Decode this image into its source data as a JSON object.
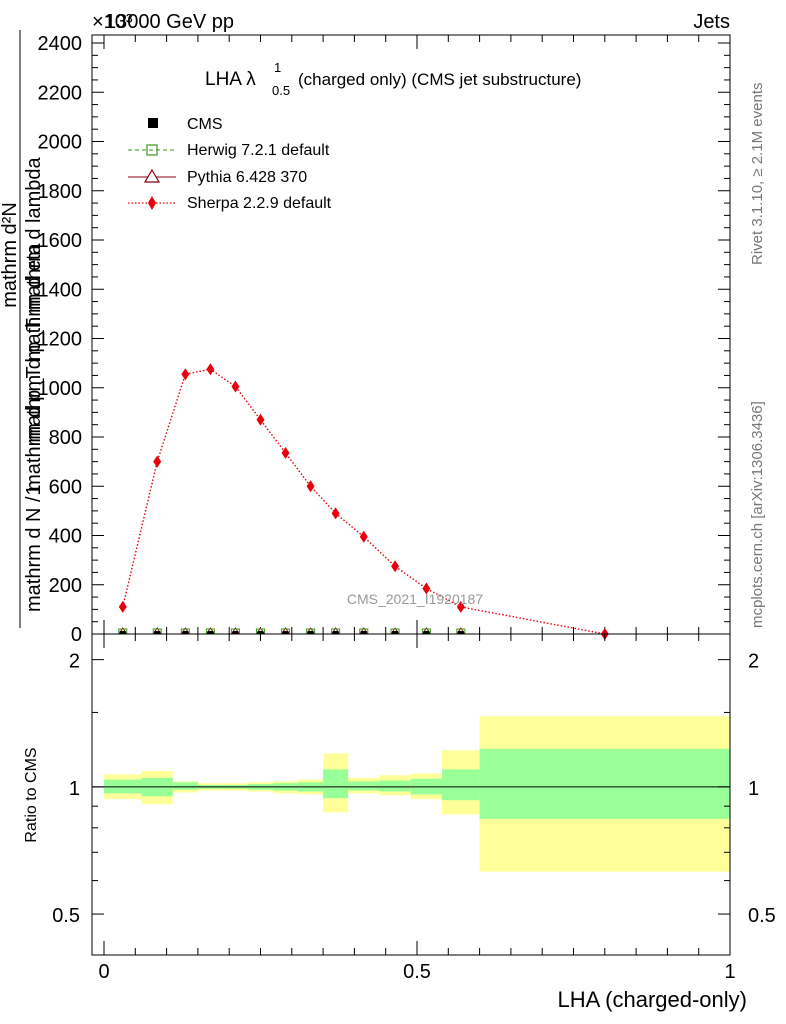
{
  "header": {
    "left": "13000 GeV pp",
    "right": "Jets"
  },
  "title": {
    "main": "LHA λ",
    "sup": "1",
    "sub": "0.5",
    "suffix": " (charged only) (CMS jet substructure)"
  },
  "side_labels": {
    "rivet": "Rivet 3.1.10, ≥ 2.1M events",
    "mcplots": "mcplots.cern.ch [arXiv:1306.3436]"
  },
  "watermark": "CMS_2021_I1920187",
  "exponent_label": "×10³",
  "colors": {
    "cms": "#000000",
    "herwig": "#3a9a1a",
    "pythia": "#8b0012",
    "sherpa": "#e8000b",
    "band_inner": "#99ff99",
    "band_outer": "#ffff99"
  },
  "chart_data": [
    {
      "type": "line",
      "panel": "main",
      "title": "LHA λ^1_0.5 (charged only) (CMS jet substructure)",
      "xlabel": "LHA (charged-only)",
      "ylabel_top": "mathrm d²N",
      "ylabel_bottom": "mathrm d p_T mathrm d lambda",
      "ylabel_left_top": "1",
      "ylabel_left_bottom": "mathrm d N / mathrm d p_T mathrm d eta",
      "xlim": [
        0,
        1
      ],
      "ylim": [
        0,
        2400
      ],
      "y_scale_note": "×10³",
      "yticks": [
        0,
        200,
        400,
        600,
        800,
        1000,
        1200,
        1400,
        1600,
        1800,
        2000,
        2200,
        2400
      ],
      "legend_position": "top-left",
      "series": [
        {
          "name": "CMS",
          "marker": "filled-square",
          "line": "none",
          "x": [
            0.03,
            0.085,
            0.13,
            0.17,
            0.21,
            0.25,
            0.29,
            0.33,
            0.37,
            0.415,
            0.465,
            0.515,
            0.57
          ],
          "values": [
            0,
            0,
            0,
            0,
            0,
            0,
            0,
            0,
            0,
            0,
            0,
            0,
            0
          ]
        },
        {
          "name": "Herwig 7.2.1 default",
          "marker": "open-square",
          "line": "dashed",
          "x": [
            0.03,
            0.085,
            0.13,
            0.17,
            0.21,
            0.25,
            0.29,
            0.33,
            0.37,
            0.415,
            0.465,
            0.515,
            0.57
          ],
          "values": [
            0,
            0,
            0,
            0,
            0,
            0,
            0,
            0,
            0,
            0,
            0,
            0,
            0
          ]
        },
        {
          "name": "Pythia 6.428 370",
          "marker": "open-triangle",
          "line": "solid",
          "x": [
            0.03,
            0.085,
            0.13,
            0.17,
            0.21,
            0.25,
            0.29,
            0.33,
            0.37,
            0.415,
            0.465,
            0.515,
            0.57
          ],
          "values": [
            0,
            0,
            0,
            0,
            0,
            0,
            0,
            0,
            0,
            0,
            0,
            0,
            0
          ]
        },
        {
          "name": "Sherpa 2.2.9 default",
          "marker": "filled-diamond",
          "line": "dotted",
          "x": [
            0.03,
            0.085,
            0.13,
            0.17,
            0.21,
            0.25,
            0.29,
            0.33,
            0.37,
            0.415,
            0.465,
            0.515,
            0.57,
            0.8
          ],
          "values": [
            110,
            700,
            1055,
            1075,
            1005,
            870,
            735,
            600,
            490,
            395,
            275,
            185,
            110,
            0
          ]
        }
      ]
    },
    {
      "type": "area",
      "panel": "ratio",
      "ylabel": "Ratio to CMS",
      "xlabel": "LHA (charged-only)",
      "xlim": [
        0,
        1
      ],
      "ylim": [
        0.4,
        2.3
      ],
      "yscale": "log",
      "yticks": [
        0.5,
        1,
        2
      ],
      "xticks": [
        0,
        0.5,
        1
      ],
      "reference_line": 1,
      "bins": [
        {
          "x": [
            0.0,
            0.06
          ],
          "inner": [
            0.965,
            1.04
          ],
          "outer": [
            0.935,
            1.07
          ]
        },
        {
          "x": [
            0.06,
            0.11
          ],
          "inner": [
            0.95,
            1.05
          ],
          "outer": [
            0.91,
            1.09
          ]
        },
        {
          "x": [
            0.11,
            0.15
          ],
          "inner": [
            0.985,
            1.025
          ],
          "outer": [
            0.97,
            1.03
          ]
        },
        {
          "x": [
            0.15,
            0.19
          ],
          "inner": [
            0.99,
            1.01
          ],
          "outer": [
            0.98,
            1.02
          ]
        },
        {
          "x": [
            0.19,
            0.23
          ],
          "inner": [
            0.99,
            1.01
          ],
          "outer": [
            0.98,
            1.02
          ]
        },
        {
          "x": [
            0.23,
            0.27
          ],
          "inner": [
            0.985,
            1.015
          ],
          "outer": [
            0.975,
            1.025
          ]
        },
        {
          "x": [
            0.27,
            0.31
          ],
          "inner": [
            0.98,
            1.02
          ],
          "outer": [
            0.965,
            1.03
          ]
        },
        {
          "x": [
            0.31,
            0.35
          ],
          "inner": [
            0.975,
            1.025
          ],
          "outer": [
            0.96,
            1.04
          ]
        },
        {
          "x": [
            0.35,
            0.39
          ],
          "inner": [
            0.94,
            1.1
          ],
          "outer": [
            0.87,
            1.2
          ]
        },
        {
          "x": [
            0.39,
            0.44
          ],
          "inner": [
            0.98,
            1.03
          ],
          "outer": [
            0.965,
            1.05
          ]
        },
        {
          "x": [
            0.44,
            0.49
          ],
          "inner": [
            0.975,
            1.035
          ],
          "outer": [
            0.955,
            1.065
          ]
        },
        {
          "x": [
            0.49,
            0.54
          ],
          "inner": [
            0.96,
            1.045
          ],
          "outer": [
            0.935,
            1.075
          ]
        },
        {
          "x": [
            0.54,
            0.6
          ],
          "inner": [
            0.93,
            1.1
          ],
          "outer": [
            0.86,
            1.22
          ]
        },
        {
          "x": [
            0.6,
            1.0
          ],
          "inner": [
            0.84,
            1.23
          ],
          "outer": [
            0.63,
            1.47
          ]
        }
      ]
    }
  ]
}
